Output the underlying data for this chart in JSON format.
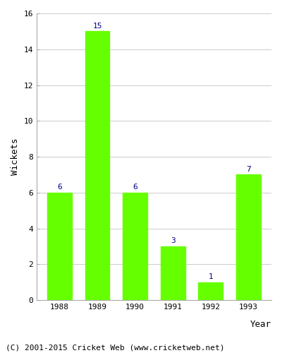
{
  "categories": [
    "1988",
    "1989",
    "1990",
    "1991",
    "1992",
    "1993"
  ],
  "values": [
    6,
    15,
    6,
    3,
    1,
    7
  ],
  "bar_color": "#66ff00",
  "bar_edgecolor": "#66ff00",
  "ylabel": "Wickets",
  "xlabel": "Year",
  "ylim": [
    0,
    16
  ],
  "yticks": [
    0,
    2,
    4,
    6,
    8,
    10,
    12,
    14,
    16
  ],
  "label_color": "#000080",
  "label_fontsize": 8,
  "axis_label_fontsize": 9,
  "tick_fontsize": 8,
  "footer_text": "(C) 2001-2015 Cricket Web (www.cricketweb.net)",
  "footer_fontsize": 8,
  "background_color": "#ffffff",
  "grid_color": "#cccccc",
  "spine_color": "#aaaaaa"
}
